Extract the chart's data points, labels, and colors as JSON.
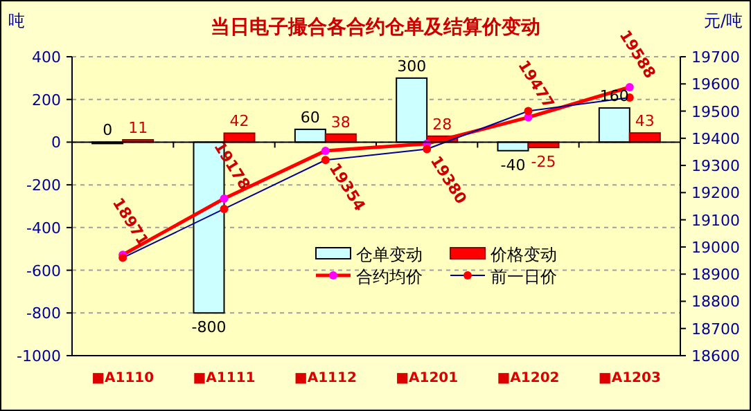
{
  "chart_data": {
    "type": "bar",
    "title": "当日电子撮合各合约仓单及结算价变动",
    "ylabel": "吨",
    "y2label": "元/吨",
    "categories": [
      "■A1110",
      "■A1111",
      "■A1112",
      "■A1201",
      "■A1202",
      "■A1203"
    ],
    "series": [
      {
        "name": "仓单变动",
        "color": "#ccffff",
        "values": [
          0,
          -800,
          60,
          300,
          -40,
          160
        ],
        "value_labels": [
          "0",
          "-800",
          "60",
          "300",
          "-40",
          "160"
        ]
      },
      {
        "name": "价格变动",
        "color": "#ff0000",
        "values": [
          11,
          42,
          38,
          28,
          -25,
          43
        ],
        "value_labels": [
          "11",
          "42",
          "38",
          "28",
          "-25",
          "43"
        ]
      },
      {
        "name": "合约均价",
        "type": "line",
        "axis": "y2",
        "color": "#ff0000",
        "marker": "circle",
        "values": [
          18971,
          19178,
          19354,
          19380,
          19477,
          19588
        ],
        "value_labels": [
          "18971",
          "19178",
          "19354",
          "19380",
          "19477",
          "19588"
        ]
      },
      {
        "name": "前一日价",
        "type": "line",
        "axis": "y2",
        "color": "#000099",
        "marker": "circle",
        "values": [
          18960,
          19140,
          19320,
          19360,
          19500,
          19550
        ]
      }
    ],
    "ylim": [
      -1000,
      400
    ],
    "yticks": [
      -1000,
      -800,
      -600,
      -400,
      -200,
      0,
      200,
      400
    ],
    "y2lim": [
      18600,
      19700
    ],
    "y2ticks": [
      18600,
      18700,
      18800,
      18900,
      19000,
      19100,
      19200,
      19300,
      19400,
      19500,
      19600,
      19700
    ],
    "grid": "y",
    "legend": "center"
  }
}
